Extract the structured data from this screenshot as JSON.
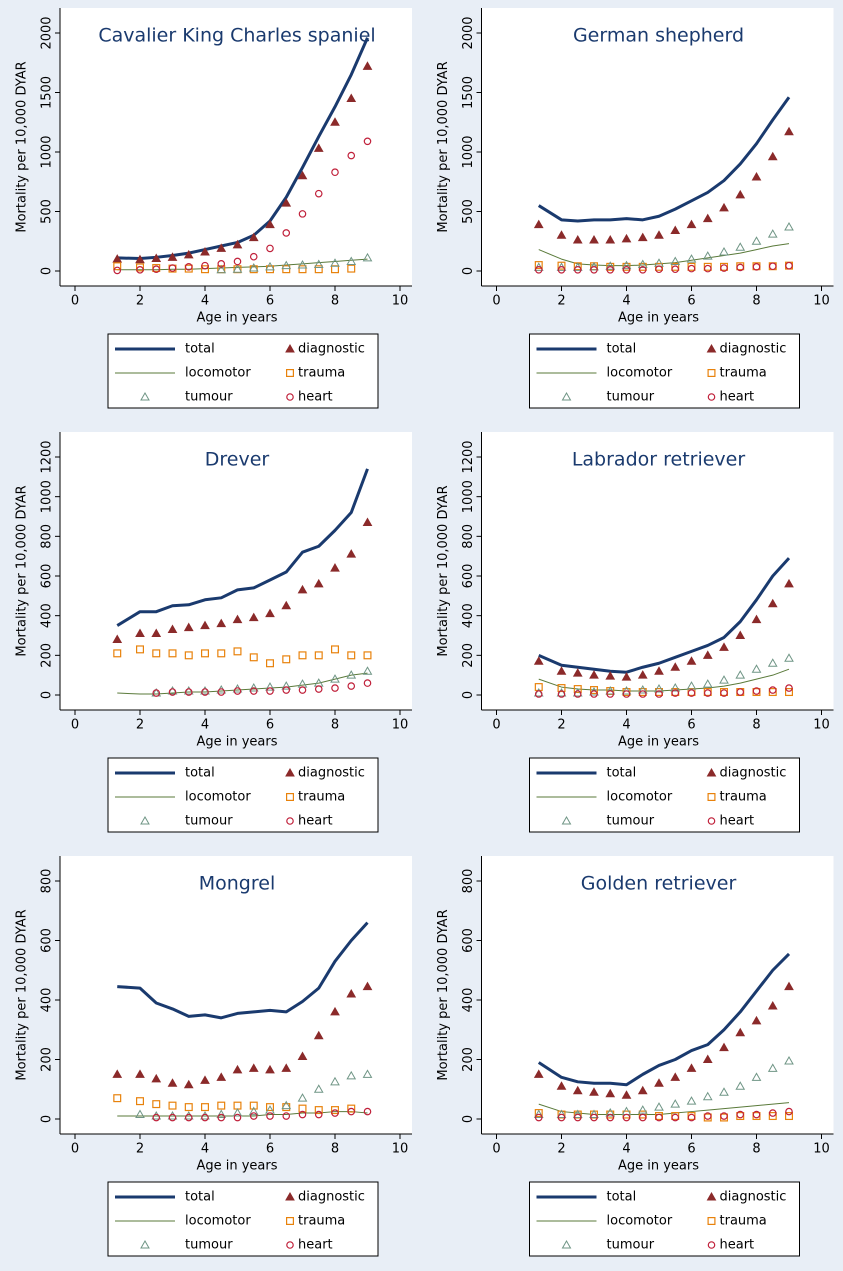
{
  "chart_data": [
    {
      "type": "line",
      "title": "Cavalier King Charles spaniel",
      "x_label": "Age in years",
      "y_label": "Mortality per 10,000 DYAR",
      "xlim": [
        0,
        10
      ],
      "xticks": [
        0,
        2,
        4,
        6,
        8,
        10
      ],
      "ylim": [
        0,
        2000
      ],
      "yticks": [
        0,
        500,
        1000,
        1500,
        2000
      ],
      "x": [
        1.3,
        2,
        2.5,
        3,
        3.5,
        4,
        4.5,
        5,
        5.5,
        6,
        6.5,
        7,
        7.5,
        8,
        8.5,
        9
      ],
      "series": [
        {
          "name": "total",
          "color": "#1a3a6e",
          "style": "thick-line",
          "values": [
            110,
            105,
            115,
            130,
            150,
            180,
            210,
            240,
            300,
            420,
            620,
            870,
            1130,
            1380,
            1650,
            1960
          ]
        },
        {
          "name": "diagnostic",
          "color": "#8b2a2a",
          "style": "triangle",
          "values": [
            100,
            95,
            105,
            115,
            135,
            160,
            190,
            220,
            280,
            390,
            570,
            800,
            1030,
            1250,
            1450,
            1720
          ]
        },
        {
          "name": "locomotor",
          "color": "#5a7a3a",
          "style": "thin-line",
          "values": [
            10,
            10,
            10,
            15,
            15,
            20,
            25,
            30,
            35,
            40,
            50,
            60,
            70,
            80,
            90,
            100
          ]
        },
        {
          "name": "trauma",
          "color": "#e8820c",
          "style": "square",
          "values": [
            40,
            30,
            25,
            20,
            20,
            15,
            15,
            15,
            15,
            15,
            15,
            15,
            15,
            15,
            20,
            null
          ]
        },
        {
          "name": "tumour",
          "color": "#6f9585",
          "style": "hollow-triangle",
          "values": [
            null,
            null,
            null,
            null,
            null,
            null,
            10,
            15,
            25,
            35,
            45,
            50,
            55,
            65,
            80,
            110
          ]
        },
        {
          "name": "heart",
          "color": "#c0203a",
          "style": "circle",
          "values": [
            5,
            10,
            15,
            25,
            35,
            45,
            60,
            80,
            120,
            190,
            320,
            480,
            650,
            830,
            970,
            1090
          ]
        }
      ]
    },
    {
      "type": "line",
      "title": "German shepherd",
      "x_label": "Age in years",
      "y_label": "Mortality per 10,000 DYAR",
      "xlim": [
        0,
        10
      ],
      "xticks": [
        0,
        2,
        4,
        6,
        8,
        10
      ],
      "ylim": [
        0,
        2000
      ],
      "yticks": [
        0,
        500,
        1000,
        1500,
        2000
      ],
      "x": [
        1.3,
        2,
        2.5,
        3,
        3.5,
        4,
        4.5,
        5,
        5.5,
        6,
        6.5,
        7,
        7.5,
        8,
        8.5,
        9
      ],
      "series": [
        {
          "name": "total",
          "color": "#1a3a6e",
          "style": "thick-line",
          "values": [
            550,
            430,
            420,
            430,
            430,
            440,
            430,
            460,
            520,
            590,
            660,
            760,
            900,
            1070,
            1270,
            1460
          ]
        },
        {
          "name": "diagnostic",
          "color": "#8b2a2a",
          "style": "triangle",
          "values": [
            390,
            300,
            260,
            260,
            260,
            270,
            280,
            300,
            340,
            390,
            440,
            530,
            640,
            790,
            960,
            1170
          ]
        },
        {
          "name": "locomotor",
          "color": "#5a7a3a",
          "style": "thin-line",
          "values": [
            180,
            100,
            60,
            50,
            45,
            45,
            50,
            60,
            70,
            90,
            110,
            130,
            150,
            180,
            210,
            230
          ]
        },
        {
          "name": "trauma",
          "color": "#e8820c",
          "style": "square",
          "values": [
            50,
            45,
            40,
            40,
            35,
            35,
            35,
            35,
            35,
            35,
            35,
            35,
            40,
            40,
            40,
            45
          ]
        },
        {
          "name": "tumour",
          "color": "#6f9585",
          "style": "hollow-triangle",
          "values": [
            30,
            30,
            30,
            35,
            40,
            45,
            55,
            65,
            80,
            100,
            125,
            160,
            200,
            250,
            310,
            370
          ]
        },
        {
          "name": "heart",
          "color": "#c0203a",
          "style": "circle",
          "values": [
            10,
            10,
            10,
            10,
            10,
            10,
            10,
            15,
            15,
            20,
            20,
            25,
            30,
            35,
            40,
            45
          ]
        }
      ]
    },
    {
      "type": "line",
      "title": "Drever",
      "x_label": "Age in years",
      "y_label": "Mortality per 10,000 DYAR",
      "xlim": [
        0,
        10
      ],
      "xticks": [
        0,
        2,
        4,
        6,
        8,
        10
      ],
      "ylim": [
        0,
        1200
      ],
      "yticks": [
        0,
        200,
        400,
        600,
        800,
        1000,
        1200
      ],
      "x": [
        1.3,
        2,
        2.5,
        3,
        3.5,
        4,
        4.5,
        5,
        5.5,
        6,
        6.5,
        7,
        7.5,
        8,
        8.5,
        9
      ],
      "series": [
        {
          "name": "total",
          "color": "#1a3a6e",
          "style": "thick-line",
          "values": [
            350,
            420,
            420,
            450,
            455,
            480,
            490,
            530,
            540,
            580,
            620,
            720,
            750,
            830,
            920,
            1140
          ]
        },
        {
          "name": "diagnostic",
          "color": "#8b2a2a",
          "style": "triangle",
          "values": [
            280,
            310,
            310,
            330,
            340,
            350,
            360,
            380,
            390,
            410,
            450,
            530,
            560,
            640,
            710,
            870
          ]
        },
        {
          "name": "locomotor",
          "color": "#5a7a3a",
          "style": "thin-line",
          "values": [
            10,
            5,
            5,
            10,
            15,
            15,
            20,
            25,
            30,
            35,
            40,
            50,
            60,
            80,
            100,
            110
          ]
        },
        {
          "name": "trauma",
          "color": "#e8820c",
          "style": "square",
          "values": [
            210,
            230,
            210,
            210,
            200,
            210,
            210,
            220,
            190,
            160,
            180,
            200,
            200,
            230,
            200,
            200
          ]
        },
        {
          "name": "tumour",
          "color": "#6f9585",
          "style": "hollow-triangle",
          "values": [
            null,
            null,
            10,
            20,
            20,
            20,
            25,
            30,
            35,
            40,
            45,
            55,
            60,
            80,
            100,
            120
          ]
        },
        {
          "name": "heart",
          "color": "#c0203a",
          "style": "circle",
          "values": [
            null,
            null,
            10,
            15,
            15,
            15,
            15,
            20,
            20,
            20,
            25,
            25,
            30,
            35,
            45,
            60
          ]
        }
      ]
    },
    {
      "type": "line",
      "title": "Labrador retriever",
      "x_label": "Age in years",
      "y_label": "Mortality per 10,000 DYAR",
      "xlim": [
        0,
        10
      ],
      "xticks": [
        0,
        2,
        4,
        6,
        8,
        10
      ],
      "ylim": [
        0,
        1200
      ],
      "yticks": [
        0,
        200,
        400,
        600,
        800,
        1000,
        1200
      ],
      "x": [
        1.3,
        2,
        2.5,
        3,
        3.5,
        4,
        4.5,
        5,
        5.5,
        6,
        6.5,
        7,
        7.5,
        8,
        8.5,
        9
      ],
      "series": [
        {
          "name": "total",
          "color": "#1a3a6e",
          "style": "thick-line",
          "values": [
            200,
            150,
            140,
            130,
            120,
            115,
            140,
            160,
            190,
            220,
            250,
            290,
            370,
            480,
            600,
            690
          ]
        },
        {
          "name": "diagnostic",
          "color": "#8b2a2a",
          "style": "triangle",
          "values": [
            170,
            120,
            110,
            100,
            95,
            90,
            100,
            120,
            140,
            170,
            200,
            240,
            300,
            380,
            460,
            560
          ]
        },
        {
          "name": "locomotor",
          "color": "#5a7a3a",
          "style": "thin-line",
          "values": [
            80,
            40,
            30,
            25,
            25,
            20,
            20,
            20,
            25,
            30,
            35,
            45,
            60,
            80,
            100,
            130
          ]
        },
        {
          "name": "trauma",
          "color": "#e8820c",
          "style": "square",
          "values": [
            40,
            35,
            30,
            25,
            20,
            15,
            15,
            15,
            15,
            15,
            15,
            15,
            15,
            15,
            15,
            15
          ]
        },
        {
          "name": "tumour",
          "color": "#6f9585",
          "style": "hollow-triangle",
          "values": [
            10,
            10,
            10,
            15,
            20,
            20,
            25,
            30,
            35,
            45,
            55,
            75,
            100,
            130,
            160,
            185
          ]
        },
        {
          "name": "heart",
          "color": "#c0203a",
          "style": "circle",
          "values": [
            5,
            5,
            5,
            5,
            5,
            5,
            5,
            5,
            10,
            10,
            10,
            10,
            15,
            20,
            25,
            35
          ]
        }
      ]
    },
    {
      "type": "line",
      "title": "Mongrel",
      "x_label": "Age in years",
      "y_label": "Mortality per 10,000 DYAR",
      "xlim": [
        0,
        10
      ],
      "xticks": [
        0,
        2,
        4,
        6,
        8,
        10
      ],
      "ylim": [
        0,
        800
      ],
      "yticks": [
        0,
        200,
        400,
        600,
        800
      ],
      "x": [
        1.3,
        2,
        2.5,
        3,
        3.5,
        4,
        4.5,
        5,
        5.5,
        6,
        6.5,
        7,
        7.5,
        8,
        8.5,
        9
      ],
      "series": [
        {
          "name": "total",
          "color": "#1a3a6e",
          "style": "thick-line",
          "values": [
            445,
            440,
            390,
            370,
            345,
            350,
            340,
            355,
            360,
            365,
            360,
            395,
            440,
            530,
            600,
            660
          ]
        },
        {
          "name": "diagnostic",
          "color": "#8b2a2a",
          "style": "triangle",
          "values": [
            150,
            150,
            135,
            120,
            115,
            130,
            140,
            165,
            170,
            165,
            170,
            210,
            280,
            360,
            420,
            445
          ]
        },
        {
          "name": "locomotor",
          "color": "#5a7a3a",
          "style": "thin-line",
          "values": [
            10,
            10,
            10,
            10,
            10,
            10,
            10,
            10,
            10,
            15,
            15,
            20,
            20,
            25,
            25,
            20
          ]
        },
        {
          "name": "trauma",
          "color": "#e8820c",
          "style": "square",
          "values": [
            70,
            60,
            50,
            45,
            40,
            40,
            45,
            45,
            45,
            40,
            40,
            35,
            30,
            30,
            35,
            null
          ]
        },
        {
          "name": "tumour",
          "color": "#6f9585",
          "style": "hollow-triangle",
          "values": [
            null,
            15,
            10,
            10,
            10,
            10,
            15,
            20,
            25,
            30,
            45,
            70,
            100,
            125,
            145,
            150
          ]
        },
        {
          "name": "heart",
          "color": "#c0203a",
          "style": "circle",
          "values": [
            null,
            null,
            5,
            5,
            5,
            5,
            5,
            5,
            10,
            10,
            10,
            15,
            15,
            20,
            25,
            25
          ]
        }
      ]
    },
    {
      "type": "line",
      "title": "Golden retriever",
      "x_label": "Age in years",
      "y_label": "Mortality per 10,000 DYAR",
      "xlim": [
        0,
        10
      ],
      "xticks": [
        0,
        2,
        4,
        6,
        8,
        10
      ],
      "ylim": [
        0,
        800
      ],
      "yticks": [
        0,
        200,
        400,
        600,
        800
      ],
      "x": [
        1.3,
        2,
        2.5,
        3,
        3.5,
        4,
        4.5,
        5,
        5.5,
        6,
        6.5,
        7,
        7.5,
        8,
        8.5,
        9
      ],
      "series": [
        {
          "name": "total",
          "color": "#1a3a6e",
          "style": "thick-line",
          "values": [
            190,
            140,
            125,
            120,
            120,
            115,
            150,
            180,
            200,
            230,
            250,
            300,
            360,
            430,
            500,
            555
          ]
        },
        {
          "name": "diagnostic",
          "color": "#8b2a2a",
          "style": "triangle",
          "values": [
            150,
            110,
            95,
            90,
            85,
            80,
            95,
            120,
            140,
            170,
            200,
            240,
            290,
            330,
            380,
            445
          ]
        },
        {
          "name": "locomotor",
          "color": "#5a7a3a",
          "style": "thin-line",
          "values": [
            50,
            25,
            20,
            15,
            15,
            15,
            15,
            15,
            20,
            25,
            30,
            35,
            40,
            45,
            50,
            55
          ]
        },
        {
          "name": "trauma",
          "color": "#e8820c",
          "style": "square",
          "values": [
            20,
            15,
            15,
            15,
            15,
            15,
            15,
            10,
            10,
            10,
            5,
            5,
            10,
            10,
            10,
            10
          ]
        },
        {
          "name": "tumour",
          "color": "#6f9585",
          "style": "hollow-triangle",
          "values": [
            15,
            15,
            15,
            15,
            20,
            25,
            30,
            40,
            50,
            60,
            75,
            90,
            110,
            140,
            170,
            195
          ]
        },
        {
          "name": "heart",
          "color": "#c0203a",
          "style": "circle",
          "values": [
            5,
            5,
            5,
            5,
            5,
            5,
            5,
            5,
            5,
            5,
            10,
            10,
            15,
            15,
            20,
            25
          ]
        }
      ]
    }
  ]
}
